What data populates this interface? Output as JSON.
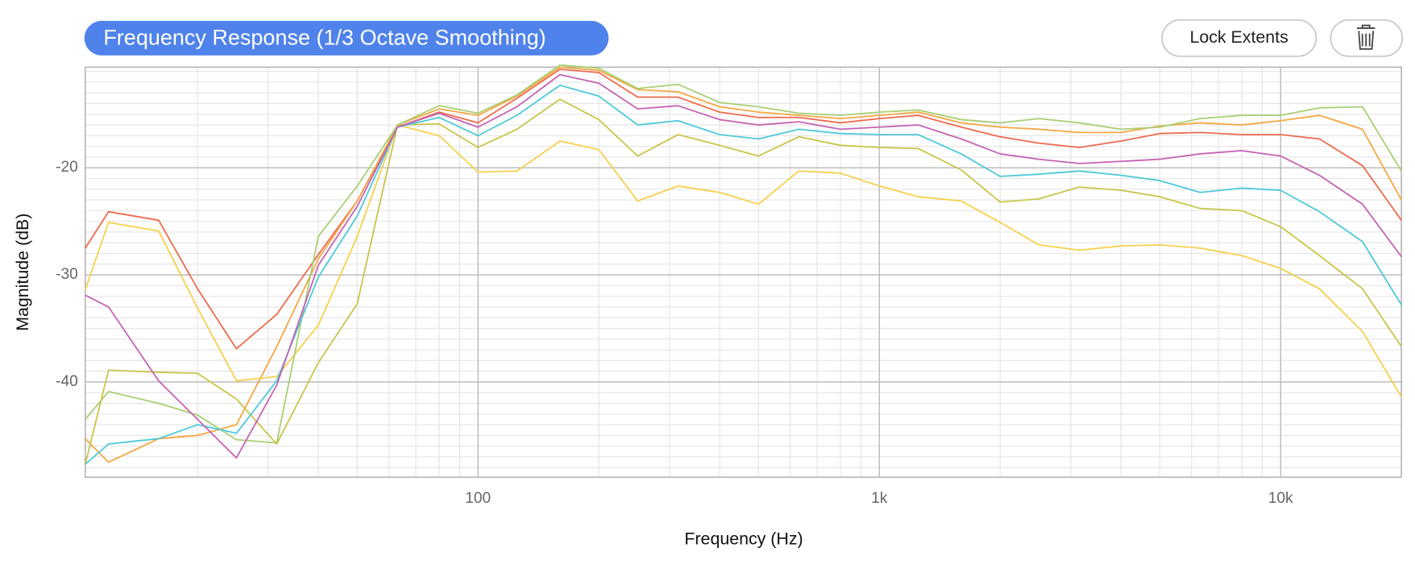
{
  "chart_data": {
    "type": "line",
    "title": "Frequency Response",
    "subtitle": "(1/3 Octave Smoothing)",
    "buttons": [
      "Lock Extents"
    ],
    "x_label": "Frequency (Hz)",
    "y_label": "Magnitude (dB)",
    "log_x": true,
    "grid": true,
    "xlim": [
      10.5,
      20000
    ],
    "xticks": [
      100,
      {
        "value": 1000,
        "label": "1k"
      },
      {
        "value": 10000,
        "label": "10k"
      }
    ],
    "ylim": [
      -48.9,
      -10.6
    ],
    "yticks": [
      -20,
      -30,
      -40
    ],
    "x": [
      10.5,
      12,
      16,
      20,
      25,
      31.5,
      40,
      50,
      63,
      80,
      100,
      125,
      160,
      200,
      250,
      315,
      400,
      500,
      630,
      800,
      1000,
      1250,
      1600,
      2000,
      2500,
      3150,
      4000,
      5000,
      6300,
      8000,
      10000,
      12500,
      16000,
      20000
    ],
    "series": [
      {
        "color": "#ee6b4d",
        "values": [
          -27.5,
          -24.1,
          -24.9,
          -31.3,
          -36.9,
          -33.7,
          -28.1,
          -23.1,
          -16.2,
          -14.8,
          -15.8,
          -13.5,
          -10.8,
          -11.1,
          -13.4,
          -13.4,
          -14.8,
          -15.3,
          -15.3,
          -15.8,
          -15.4,
          -15.1,
          -16.2,
          -17.1,
          -17.7,
          -18.1,
          -17.5,
          -16.8,
          -16.7,
          -16.9,
          -16.9,
          -17.3,
          -19.8,
          -24.9
        ]
      },
      {
        "color": "#f5a742",
        "values": [
          -45.3,
          -47.5,
          -45.3,
          -45.0,
          -44.0,
          -36.7,
          -28.5,
          -23.1,
          -16.0,
          -14.5,
          -15.1,
          -13.3,
          -10.6,
          -10.9,
          -12.7,
          -12.9,
          -14.3,
          -14.8,
          -15.1,
          -15.4,
          -15.1,
          -14.8,
          -15.8,
          -16.2,
          -16.4,
          -16.7,
          -16.7,
          -16.1,
          -15.8,
          -16.0,
          -15.6,
          -15.1,
          -16.4,
          -23.0
        ]
      },
      {
        "color": "#f7d04c",
        "values": [
          -31.4,
          -25.1,
          -25.9,
          -33.1,
          -39.9,
          -39.5,
          -34.7,
          -26.4,
          -16.0,
          -17.0,
          -20.4,
          -20.3,
          -17.5,
          -18.3,
          -23.1,
          -21.7,
          -22.3,
          -23.4,
          -20.3,
          -20.5,
          -21.7,
          -22.7,
          -23.1,
          -25.1,
          -27.2,
          -27.7,
          -27.3,
          -27.2,
          -27.5,
          -28.2,
          -29.4,
          -31.3,
          -35.3,
          -41.4
        ]
      },
      {
        "color": "#a9cf73",
        "values": [
          -43.5,
          -40.9,
          -42.0,
          -43.1,
          -45.4,
          -45.7,
          -26.4,
          -21.7,
          -16.0,
          -14.2,
          -14.9,
          -13.2,
          -10.4,
          -10.7,
          -12.6,
          -12.2,
          -13.9,
          -14.3,
          -14.9,
          -15.1,
          -14.8,
          -14.6,
          -15.5,
          -15.8,
          -15.4,
          -15.8,
          -16.4,
          -16.2,
          -15.4,
          -15.1,
          -15.1,
          -14.4,
          -14.3,
          -20.3
        ]
      },
      {
        "color": "#c9c54a",
        "values": [
          -47.7,
          -38.9,
          -39.1,
          -39.2,
          -41.6,
          -45.8,
          -38.2,
          -32.7,
          -16.0,
          -15.9,
          -18.1,
          -16.4,
          -13.6,
          -15.5,
          -18.9,
          -16.9,
          -17.9,
          -18.9,
          -17.1,
          -17.9,
          -18.1,
          -18.2,
          -20.2,
          -23.2,
          -22.9,
          -21.8,
          -22.1,
          -22.7,
          -23.8,
          -24.0,
          -25.5,
          -28.2,
          -31.3,
          -36.7
        ]
      },
      {
        "color": "#4ec9d9",
        "values": [
          -47.7,
          -45.8,
          -45.3,
          -44.0,
          -44.8,
          -39.9,
          -30.2,
          -24.5,
          -16.2,
          -15.3,
          -17.0,
          -15.1,
          -12.3,
          -13.3,
          -16.0,
          -15.6,
          -16.9,
          -17.3,
          -16.4,
          -16.8,
          -16.9,
          -16.9,
          -18.7,
          -20.8,
          -20.6,
          -20.3,
          -20.7,
          -21.2,
          -22.3,
          -21.9,
          -22.1,
          -24.1,
          -26.9,
          -32.8
        ]
      },
      {
        "color": "#c563b3",
        "values": [
          -31.9,
          -33.0,
          -39.9,
          -43.5,
          -47.1,
          -40.3,
          -29.1,
          -23.6,
          -16.2,
          -14.9,
          -16.2,
          -14.3,
          -11.3,
          -12.1,
          -14.5,
          -14.2,
          -15.5,
          -16.0,
          -15.7,
          -16.4,
          -16.2,
          -16.0,
          -17.3,
          -18.7,
          -19.2,
          -19.6,
          -19.4,
          -19.2,
          -18.7,
          -18.4,
          -18.9,
          -20.7,
          -23.4,
          -28.3
        ]
      }
    ]
  }
}
